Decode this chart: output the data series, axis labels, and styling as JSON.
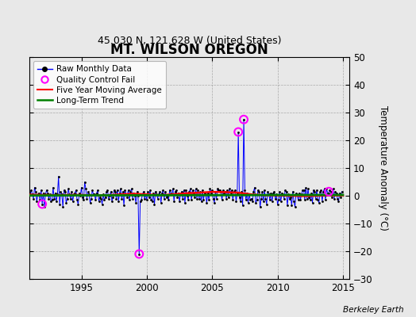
{
  "title": "MT. WILSON OREGON",
  "subtitle": "45.030 N, 121.628 W (United States)",
  "ylabel_right": "Temperature Anomaly (°C)",
  "watermark": "Berkeley Earth",
  "ylim": [
    -30,
    50
  ],
  "xlim": [
    1991.0,
    2015.5
  ],
  "xticks": [
    1995,
    2000,
    2005,
    2010,
    2015
  ],
  "yticks": [
    -30,
    -20,
    -10,
    0,
    10,
    20,
    30,
    40,
    50
  ],
  "background_color": "#e8e8e8",
  "plot_bg_color": "#e8e8e8",
  "legend_labels": [
    "Raw Monthly Data",
    "Quality Control Fail",
    "Five Year Moving Average",
    "Long-Term Trend"
  ],
  "raw_data_times": [
    1991.0,
    1991.083,
    1991.167,
    1991.25,
    1991.333,
    1991.417,
    1991.5,
    1991.583,
    1991.667,
    1991.75,
    1991.833,
    1991.917,
    1992.0,
    1992.083,
    1992.167,
    1992.25,
    1992.333,
    1992.417,
    1992.5,
    1992.583,
    1992.667,
    1992.75,
    1992.833,
    1992.917,
    1993.0,
    1993.083,
    1993.167,
    1993.25,
    1993.333,
    1993.417,
    1993.5,
    1993.583,
    1993.667,
    1993.75,
    1993.833,
    1993.917,
    1994.0,
    1994.083,
    1994.167,
    1994.25,
    1994.333,
    1994.417,
    1994.5,
    1994.583,
    1994.667,
    1994.75,
    1994.833,
    1994.917,
    1995.0,
    1995.083,
    1995.167,
    1995.25,
    1995.333,
    1995.417,
    1995.5,
    1995.583,
    1995.667,
    1995.75,
    1995.833,
    1995.917,
    1996.0,
    1996.083,
    1996.167,
    1996.25,
    1996.333,
    1996.417,
    1996.5,
    1996.583,
    1996.667,
    1996.75,
    1996.833,
    1996.917,
    1997.0,
    1997.083,
    1997.167,
    1997.25,
    1997.333,
    1997.417,
    1997.5,
    1997.583,
    1997.667,
    1997.75,
    1997.833,
    1997.917,
    1998.0,
    1998.083,
    1998.167,
    1998.25,
    1998.333,
    1998.417,
    1998.5,
    1998.583,
    1998.667,
    1998.75,
    1998.833,
    1998.917,
    1999.0,
    1999.083,
    1999.167,
    1999.25,
    1999.333,
    1999.417,
    1999.5,
    1999.583,
    1999.667,
    1999.75,
    1999.833,
    1999.917,
    2000.0,
    2000.083,
    2000.167,
    2000.25,
    2000.333,
    2000.417,
    2000.5,
    2000.583,
    2000.667,
    2000.75,
    2000.833,
    2000.917,
    2001.0,
    2001.083,
    2001.167,
    2001.25,
    2001.333,
    2001.417,
    2001.5,
    2001.583,
    2001.667,
    2001.75,
    2001.833,
    2001.917,
    2002.0,
    2002.083,
    2002.167,
    2002.25,
    2002.333,
    2002.417,
    2002.5,
    2002.583,
    2002.667,
    2002.75,
    2002.833,
    2002.917,
    2003.0,
    2003.083,
    2003.167,
    2003.25,
    2003.333,
    2003.417,
    2003.5,
    2003.583,
    2003.667,
    2003.75,
    2003.833,
    2003.917,
    2004.0,
    2004.083,
    2004.167,
    2004.25,
    2004.333,
    2004.417,
    2004.5,
    2004.583,
    2004.667,
    2004.75,
    2004.833,
    2004.917,
    2005.0,
    2005.083,
    2005.167,
    2005.25,
    2005.333,
    2005.417,
    2005.5,
    2005.583,
    2005.667,
    2005.75,
    2005.833,
    2005.917,
    2006.0,
    2006.083,
    2006.167,
    2006.25,
    2006.333,
    2006.417,
    2006.5,
    2006.583,
    2006.667,
    2006.75,
    2006.833,
    2006.917,
    2007.0,
    2007.083,
    2007.167,
    2007.25,
    2007.333,
    2007.417,
    2007.5,
    2007.583,
    2007.667,
    2007.75,
    2007.833,
    2007.917,
    2008.0,
    2008.083,
    2008.167,
    2008.25,
    2008.333,
    2008.417,
    2008.5,
    2008.583,
    2008.667,
    2008.75,
    2008.833,
    2008.917,
    2009.0,
    2009.083,
    2009.167,
    2009.25,
    2009.333,
    2009.417,
    2009.5,
    2009.583,
    2009.667,
    2009.75,
    2009.833,
    2009.917,
    2010.0,
    2010.083,
    2010.167,
    2010.25,
    2010.333,
    2010.417,
    2010.5,
    2010.583,
    2010.667,
    2010.75,
    2010.833,
    2010.917,
    2011.0,
    2011.083,
    2011.167,
    2011.25,
    2011.333,
    2011.417,
    2011.5,
    2011.583,
    2011.667,
    2011.75,
    2011.833,
    2011.917,
    2012.0,
    2012.083,
    2012.167,
    2012.25,
    2012.333,
    2012.417,
    2012.5,
    2012.583,
    2012.667,
    2012.75,
    2012.833,
    2012.917,
    2013.0,
    2013.083,
    2013.167,
    2013.25,
    2013.333,
    2013.417,
    2013.5,
    2013.583,
    2013.667,
    2013.75,
    2013.833,
    2013.917,
    2014.0,
    2014.083,
    2014.167,
    2014.25,
    2014.333,
    2014.417,
    2014.5,
    2014.583,
    2014.667,
    2014.75,
    2014.833,
    2014.917
  ],
  "raw_data_values": [
    1.5,
    0.5,
    2.0,
    0.5,
    -1.0,
    3.0,
    1.5,
    -2.0,
    0.5,
    1.0,
    -1.5,
    2.0,
    -3.0,
    1.0,
    -4.0,
    0.5,
    2.0,
    1.0,
    -1.0,
    0.5,
    -2.0,
    -1.5,
    3.0,
    -1.0,
    1.0,
    -2.0,
    0.5,
    7.0,
    -3.0,
    1.5,
    0.5,
    -4.0,
    2.0,
    1.5,
    -2.5,
    -1.0,
    2.5,
    0.5,
    -1.0,
    1.5,
    -2.0,
    0.5,
    1.0,
    2.0,
    -1.5,
    -3.0,
    1.0,
    0.0,
    3.0,
    -0.5,
    -1.5,
    5.0,
    2.5,
    -1.0,
    1.5,
    0.5,
    -2.5,
    -1.0,
    2.0,
    0.5,
    0.5,
    -1.5,
    1.0,
    2.0,
    -2.0,
    -0.5,
    -1.0,
    -3.0,
    0.5,
    -1.5,
    -0.5,
    1.5,
    2.0,
    -1.0,
    0.0,
    1.5,
    -2.0,
    -0.5,
    2.0,
    1.5,
    -1.0,
    2.0,
    -2.0,
    1.0,
    2.5,
    -1.0,
    1.5,
    -3.5,
    2.0,
    0.5,
    -0.5,
    2.0,
    -1.5,
    1.5,
    2.5,
    -1.0,
    1.0,
    0.0,
    -2.5,
    1.5,
    0.0,
    -21.0,
    -2.0,
    -1.5,
    0.5,
    1.5,
    -1.0,
    0.5,
    -1.5,
    1.5,
    -0.5,
    2.0,
    -1.5,
    -2.0,
    1.0,
    -3.0,
    1.5,
    0.5,
    -1.0,
    0.5,
    1.5,
    -2.5,
    1.0,
    2.0,
    -1.0,
    1.5,
    -0.5,
    0.0,
    -1.5,
    2.0,
    0.5,
    1.0,
    2.5,
    -2.0,
    1.5,
    2.0,
    -0.5,
    1.0,
    -2.0,
    0.5,
    1.5,
    -1.0,
    2.0,
    -2.5,
    2.0,
    0.0,
    -1.5,
    1.5,
    2.5,
    -1.5,
    2.0,
    1.0,
    -0.5,
    2.5,
    -1.0,
    2.0,
    -1.0,
    1.5,
    -2.0,
    2.0,
    -1.5,
    1.0,
    0.5,
    -2.5,
    1.0,
    -1.5,
    2.5,
    1.0,
    2.0,
    -1.0,
    -2.5,
    1.5,
    -1.0,
    2.5,
    2.0,
    2.0,
    1.5,
    -1.5,
    2.0,
    1.0,
    1.5,
    -1.0,
    2.0,
    -0.5,
    2.5,
    1.0,
    2.0,
    -1.5,
    1.5,
    2.0,
    -2.0,
    1.0,
    23.0,
    -0.5,
    -2.0,
    1.5,
    -3.5,
    27.5,
    2.0,
    -1.5,
    1.0,
    -2.5,
    0.5,
    -1.5,
    -1.0,
    -2.0,
    1.5,
    3.0,
    -2.5,
    -1.5,
    2.0,
    1.5,
    -4.0,
    -1.0,
    1.5,
    -2.0,
    2.0,
    -1.0,
    -3.0,
    1.5,
    0.5,
    -1.5,
    1.0,
    -2.0,
    1.0,
    1.5,
    -1.0,
    0.5,
    -3.0,
    -1.5,
    1.5,
    -2.0,
    1.0,
    0.5,
    -1.0,
    2.0,
    1.5,
    -3.5,
    0.5,
    -1.0,
    -0.5,
    -3.5,
    1.5,
    -2.0,
    -4.0,
    1.0,
    0.5,
    -1.5,
    1.0,
    -1.5,
    0.5,
    2.0,
    2.0,
    -1.5,
    3.0,
    -1.0,
    2.5,
    -0.5,
    -1.5,
    1.0,
    -2.5,
    2.0,
    1.5,
    -1.0,
    2.0,
    -1.5,
    -2.5,
    1.5,
    2.0,
    -2.0,
    1.5,
    2.5,
    -1.5,
    2.5,
    1.0,
    1.0,
    2.0,
    1.5,
    -0.5,
    2.5,
    -1.0,
    1.5,
    1.0,
    -1.0,
    -2.0,
    1.0,
    -0.5,
    1.5
  ],
  "qc_fail_times": [
    1992.0,
    1999.417,
    2007.0,
    2007.417,
    2013.917
  ],
  "qc_fail_values": [
    -3.0,
    -21.0,
    23.0,
    27.5,
    1.5
  ],
  "moving_avg_times": [
    1991.0,
    1992.0,
    1993.0,
    1994.0,
    1995.0,
    1996.0,
    1997.0,
    1998.0,
    1999.0,
    2000.0,
    2001.0,
    2002.0,
    2003.0,
    2004.0,
    2005.0,
    2006.0,
    2007.0,
    2008.0,
    2009.0,
    2010.0,
    2011.0,
    2012.0,
    2013.0,
    2014.0,
    2015.0
  ],
  "moving_avg_values": [
    0.4,
    0.3,
    0.2,
    0.3,
    0.3,
    0.1,
    0.2,
    0.5,
    0.7,
    0.5,
    0.2,
    0.5,
    0.9,
    1.1,
    1.4,
    1.3,
    1.1,
    0.5,
    0.2,
    0.1,
    0.0,
    -0.1,
    0.0,
    0.1,
    0.1
  ],
  "trend_times": [
    1991.0,
    2015.0
  ],
  "trend_values": [
    0.1,
    0.3
  ]
}
